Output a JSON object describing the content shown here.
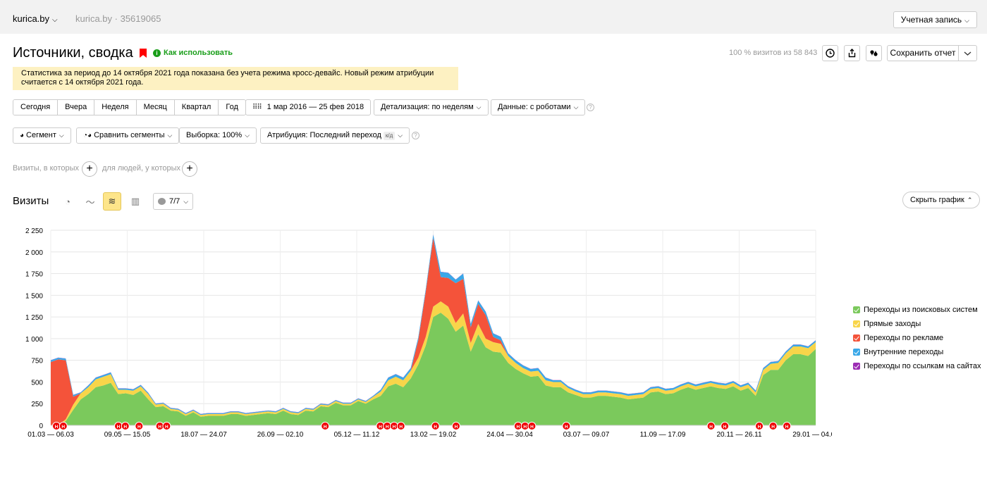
{
  "topbar": {
    "site": "kurica.by",
    "counter_name": "kurica.by",
    "counter_sep": " · ",
    "counter_id": "35619065",
    "account_button": "Учетная запись"
  },
  "header": {
    "title": "Источники, сводка",
    "how_to_use": "Как использовать",
    "visits_share": "100 % визитов из 58 843",
    "save_report": "Сохранить отчет"
  },
  "notice": {
    "text": "Статистика за период до 14 октября 2021 года показана без учета режима кросс-девайс. Новый режим атрибуции считается с 14 октября 2021 года."
  },
  "periods": [
    "Сегодня",
    "Вчера",
    "Неделя",
    "Месяц",
    "Квартал",
    "Год"
  ],
  "controls": {
    "date_range": "1 мар 2016 — 25 фев 2018",
    "detail": "Детализация: по неделям",
    "data": "Данные: с роботами",
    "segment": "Сегмент",
    "compare": "Сравнить сегменты",
    "sample": "Выборка: 100%",
    "attribution": "Атрибуция: Последний переход",
    "attribution_badge": "к/д"
  },
  "filters": {
    "visits_where": "Визиты, в которых",
    "people_where": "для людей, у которых"
  },
  "chart_section": {
    "title": "Визиты",
    "series_count": "7/7",
    "hide_chart": "Скрыть график"
  },
  "colors": {
    "search": "#7bc95c",
    "direct": "#f8d54a",
    "ads": "#f4533a",
    "internal": "#3aa8e8",
    "links": "#9c2eb4"
  },
  "chart_data": {
    "type": "area",
    "stacked": true,
    "x_labels": [
      "01.03 — 06.03",
      "09.05 — 15.05",
      "18.07 — 24.07",
      "26.09 — 02.10",
      "05.12 — 11.12",
      "13.02 — 19.02",
      "24.04 — 30.04",
      "03.07 — 09.07",
      "11.09 — 17.09",
      "20.11 — 26.11",
      "29.01 — 04.02"
    ],
    "y_ticks": [
      "0",
      "250",
      "500",
      "750",
      "1 000",
      "1 250",
      "1 500",
      "1 750",
      "2 000",
      "2 250"
    ],
    "ylim": [
      0,
      2250
    ],
    "grid": true,
    "legend_position": "right",
    "series": [
      {
        "name": "Переходы из поисковых систем",
        "color": "#7bc95c",
        "values": [
          0,
          0,
          50,
          180,
          300,
          360,
          440,
          460,
          490,
          360,
          370,
          350,
          400,
          300,
          210,
          220,
          170,
          160,
          110,
          150,
          100,
          110,
          110,
          110,
          130,
          130,
          110,
          120,
          130,
          140,
          130,
          170,
          130,
          120,
          170,
          160,
          220,
          210,
          260,
          230,
          230,
          280,
          250,
          300,
          340,
          450,
          480,
          440,
          540,
          700,
          920,
          1250,
          1300,
          1230,
          1080,
          1150,
          850,
          1050,
          900,
          850,
          840,
          720,
          650,
          600,
          560,
          570,
          460,
          440,
          440,
          380,
          350,
          320,
          320,
          340,
          340,
          330,
          320,
          300,
          310,
          320,
          380,
          390,
          360,
          370,
          410,
          440,
          410,
          430,
          450,
          430,
          420,
          450,
          400,
          430,
          340,
          580,
          640,
          640,
          750,
          820,
          820,
          800,
          880
        ]
      },
      {
        "name": "Прямые заходы",
        "color": "#f8d54a",
        "values": [
          0,
          0,
          20,
          60,
          70,
          80,
          90,
          100,
          100,
          50,
          40,
          50,
          50,
          60,
          30,
          30,
          20,
          20,
          20,
          20,
          20,
          20,
          20,
          20,
          20,
          20,
          20,
          20,
          20,
          20,
          20,
          20,
          20,
          20,
          20,
          20,
          20,
          20,
          20,
          20,
          20,
          20,
          20,
          30,
          50,
          70,
          80,
          80,
          90,
          80,
          100,
          120,
          130,
          140,
          100,
          140,
          100,
          120,
          100,
          110,
          100,
          80,
          70,
          60,
          60,
          60,
          60,
          60,
          60,
          50,
          40,
          40,
          40,
          40,
          40,
          40,
          40,
          40,
          40,
          40,
          40,
          40,
          40,
          40,
          40,
          40,
          40,
          40,
          40,
          40,
          40,
          40,
          40,
          40,
          40,
          60,
          70,
          80,
          80,
          90,
          90,
          90,
          80,
          90
        ]
      },
      {
        "name": "Переходы по рекламе",
        "color": "#f4533a",
        "values": [
          730,
          760,
          680,
          90,
          0,
          0,
          0,
          0,
          0,
          0,
          0,
          0,
          0,
          0,
          0,
          0,
          0,
          0,
          0,
          0,
          0,
          0,
          0,
          0,
          0,
          0,
          0,
          0,
          0,
          0,
          0,
          0,
          0,
          0,
          0,
          0,
          0,
          0,
          0,
          0,
          0,
          0,
          0,
          0,
          0,
          0,
          0,
          0,
          0,
          200,
          520,
          790,
          280,
          330,
          460,
          400,
          180,
          230,
          270,
          60,
          40,
          0,
          0,
          0,
          0,
          0,
          0,
          0,
          0,
          0,
          0,
          0,
          0,
          0,
          0,
          0,
          0,
          0,
          0,
          0,
          0,
          0,
          0,
          0,
          0,
          0,
          0,
          0,
          0,
          0,
          0,
          0,
          0,
          0,
          0,
          0,
          0,
          0,
          0,
          0,
          0,
          0,
          0,
          0
        ]
      },
      {
        "name": "Внутренние переходы",
        "color": "#3aa8e8",
        "values": [
          20,
          20,
          20,
          20,
          10,
          20,
          20,
          20,
          20,
          15,
          15,
          15,
          15,
          15,
          10,
          10,
          10,
          10,
          10,
          10,
          10,
          10,
          10,
          10,
          10,
          10,
          10,
          10,
          10,
          10,
          10,
          10,
          10,
          10,
          10,
          10,
          10,
          10,
          10,
          10,
          10,
          10,
          10,
          10,
          20,
          30,
          30,
          30,
          30,
          30,
          30,
          40,
          60,
          60,
          40,
          60,
          40,
          40,
          40,
          40,
          40,
          30,
          30,
          30,
          30,
          30,
          30,
          20,
          20,
          20,
          20,
          20,
          20,
          20,
          20,
          20,
          20,
          20,
          20,
          20,
          20,
          20,
          20,
          20,
          20,
          20,
          20,
          20,
          20,
          20,
          20,
          20,
          20,
          20,
          20,
          20,
          20,
          20,
          20,
          20,
          20,
          20,
          20,
          20
        ]
      },
      {
        "name": "Переходы по ссылкам на сайтах",
        "color": "#9c2eb4",
        "values": [
          2,
          2,
          2,
          2,
          2,
          2,
          2,
          2,
          2,
          2,
          2,
          2,
          2,
          2,
          2,
          2,
          2,
          2,
          2,
          2,
          2,
          2,
          2,
          2,
          2,
          2,
          2,
          2,
          2,
          2,
          2,
          2,
          2,
          2,
          2,
          2,
          2,
          2,
          2,
          2,
          2,
          2,
          2,
          2,
          2,
          2,
          2,
          2,
          2,
          2,
          2,
          2,
          2,
          2,
          2,
          2,
          2,
          2,
          2,
          2,
          2,
          2,
          2,
          2,
          2,
          2,
          2,
          2,
          2,
          2,
          2,
          2,
          2,
          2,
          2,
          2,
          2,
          2,
          2,
          2,
          2,
          2,
          2,
          2,
          2,
          2,
          2,
          2,
          2,
          2,
          2,
          2,
          2,
          2,
          2,
          2,
          2,
          2,
          2,
          2,
          2,
          2,
          2,
          2
        ]
      }
    ],
    "holiday_marker_label": "Н"
  }
}
